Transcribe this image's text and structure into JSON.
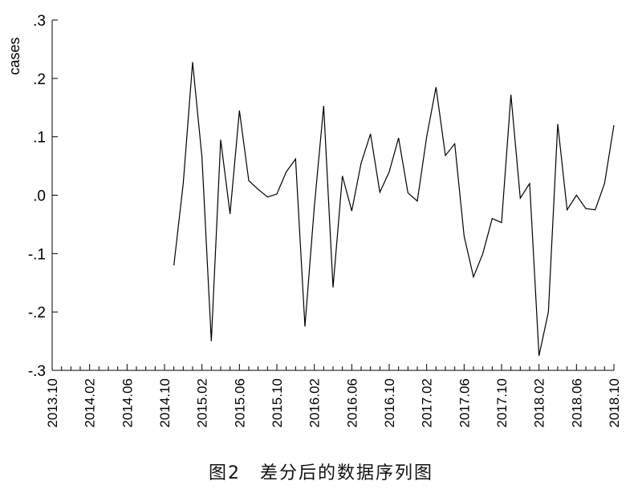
{
  "chart_data": {
    "type": "line",
    "ylabel": "cases",
    "ylim": [
      -0.3,
      0.3
    ],
    "yticks": [
      {
        "value": 0.3,
        "label": ".3"
      },
      {
        "value": 0.2,
        "label": ".2"
      },
      {
        "value": 0.1,
        "label": ".1"
      },
      {
        "value": 0.0,
        "label": ".0"
      },
      {
        "value": -0.1,
        "label": "-.1"
      },
      {
        "value": -0.2,
        "label": "-.2"
      },
      {
        "value": -0.3,
        "label": "-.3"
      }
    ],
    "xlim": [
      "2013.10",
      "2018.10"
    ],
    "xticks": [
      "2013.10",
      "2014.02",
      "2014.06",
      "2014.10",
      "2015.02",
      "2015.06",
      "2015.10",
      "2016.02",
      "2016.06",
      "2016.10",
      "2017.02",
      "2017.06",
      "2017.10",
      "2018.02",
      "2018.06",
      "2018.10"
    ],
    "series": [
      {
        "x": [
          "2014.11",
          "2014.12",
          "2015.01",
          "2015.02",
          "2015.03",
          "2015.04",
          "2015.05",
          "2015.06",
          "2015.07",
          "2015.08",
          "2015.09",
          "2015.10",
          "2015.11",
          "2015.12",
          "2016.01",
          "2016.02",
          "2016.03",
          "2016.04",
          "2016.05",
          "2016.06",
          "2016.07",
          "2016.08",
          "2016.09",
          "2016.10",
          "2016.11",
          "2016.12",
          "2017.01",
          "2017.02",
          "2017.03",
          "2017.04",
          "2017.05",
          "2017.06",
          "2017.07",
          "2017.08",
          "2017.09",
          "2017.10",
          "2017.11",
          "2017.12",
          "2018.01",
          "2018.02",
          "2018.03",
          "2018.04",
          "2018.05",
          "2018.06",
          "2018.07",
          "2018.08",
          "2018.09",
          "2018.10"
        ],
        "values": [
          -0.12,
          0.02,
          0.228,
          0.065,
          -0.25,
          0.095,
          -0.032,
          0.145,
          0.025,
          0.01,
          -0.003,
          0.002,
          0.04,
          0.062,
          -0.225,
          -0.02,
          0.153,
          -0.158,
          0.033,
          -0.027,
          0.055,
          0.105,
          0.005,
          0.04,
          0.098,
          0.004,
          -0.01,
          0.1,
          0.185,
          0.068,
          0.088,
          -0.07,
          -0.14,
          -0.1,
          -0.04,
          -0.047,
          0.172,
          -0.005,
          0.02,
          -0.275,
          -0.2,
          0.122,
          -0.025,
          0.0,
          -0.023,
          -0.025,
          0.02,
          0.12
        ]
      }
    ]
  },
  "caption": "图2　差分后的数据序列图"
}
